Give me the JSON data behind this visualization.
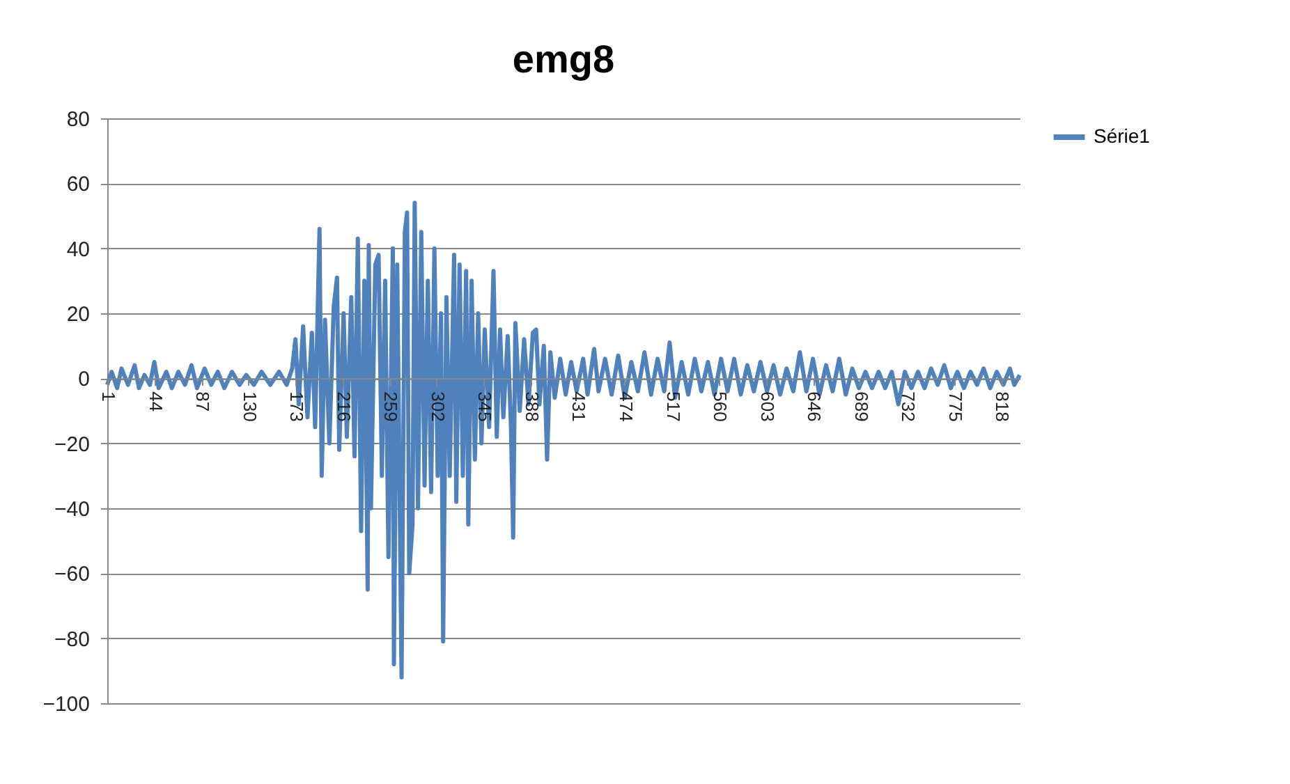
{
  "chart_data": {
    "type": "line",
    "title": "emg8",
    "x": [
      1,
      5,
      10,
      14,
      20,
      26,
      30,
      35,
      40,
      44,
      48,
      55,
      60,
      66,
      72,
      78,
      83,
      90,
      96,
      102,
      108,
      115,
      122,
      128,
      135,
      142,
      150,
      158,
      165,
      170,
      173,
      176,
      180,
      184,
      188,
      191,
      195,
      197,
      200,
      204,
      208,
      211,
      213,
      217,
      220,
      224,
      227,
      230,
      233,
      236,
      239,
      240,
      242,
      246,
      249,
      252,
      255,
      258,
      262,
      263,
      266,
      270,
      273,
      275,
      277,
      280,
      282,
      285,
      288,
      291,
      294,
      297,
      300,
      303,
      306,
      308,
      311,
      314,
      318,
      320,
      323,
      326,
      329,
      331,
      334,
      337,
      340,
      343,
      346,
      350,
      354,
      357,
      360,
      363,
      367,
      370,
      372,
      374,
      378,
      382,
      386,
      390,
      393,
      396,
      400,
      403,
      406,
      410,
      415,
      420,
      425,
      430,
      436,
      440,
      446,
      450,
      456,
      462,
      468,
      474,
      480,
      486,
      492,
      498,
      504,
      510,
      515,
      520,
      526,
      532,
      538,
      544,
      550,
      556,
      562,
      568,
      574,
      580,
      586,
      592,
      598,
      604,
      610,
      616,
      622,
      628,
      634,
      640,
      646,
      652,
      658,
      664,
      670,
      676,
      682,
      688,
      694,
      700,
      706,
      712,
      718,
      724,
      730,
      736,
      742,
      748,
      754,
      760,
      766,
      772,
      778,
      784,
      790,
      796,
      802,
      808,
      814,
      820,
      826,
      830,
      835
    ],
    "series": [
      {
        "name": "Série1",
        "color": "#4f81bd",
        "values": [
          -2,
          2,
          -3,
          3,
          -2,
          4,
          -3,
          1,
          -2,
          5,
          -3,
          2,
          -3,
          2,
          -2,
          4,
          -3,
          3,
          -2,
          2,
          -3,
          2,
          -2,
          1,
          -2,
          2,
          -2,
          2,
          -2,
          3,
          12,
          -8,
          16,
          -12,
          14,
          -15,
          46,
          -30,
          18,
          -20,
          22,
          31,
          -22,
          20,
          -18,
          25,
          -24,
          43,
          -47,
          30,
          -65,
          41,
          -40,
          35,
          38,
          -30,
          30,
          -55,
          40,
          -88,
          35,
          -92,
          45,
          51,
          -60,
          -45,
          54,
          -40,
          45,
          -33,
          30,
          -35,
          40,
          -30,
          20,
          -81,
          25,
          -30,
          38,
          -38,
          35,
          -30,
          33,
          -45,
          30,
          -25,
          20,
          -20,
          15,
          -15,
          33,
          -18,
          15,
          -12,
          13,
          -15,
          -49,
          17,
          -10,
          12,
          -8,
          14,
          15,
          -8,
          10,
          -25,
          8,
          -6,
          6,
          -5,
          5,
          -4,
          6,
          -5,
          9,
          -4,
          6,
          -5,
          7,
          -6,
          5,
          -4,
          8,
          -5,
          6,
          -4,
          11,
          -6,
          5,
          -5,
          6,
          -4,
          5,
          -5,
          6,
          -4,
          6,
          -5,
          4,
          -4,
          5,
          -4,
          4,
          -5,
          3,
          -4,
          8,
          -4,
          6,
          -5,
          4,
          -4,
          6,
          -5,
          3,
          -3,
          2,
          -3,
          2,
          -3,
          2,
          -8,
          2,
          -3,
          2,
          -3,
          3,
          -2,
          4,
          -3,
          2,
          -3,
          2,
          -2,
          3,
          -3,
          2,
          -2,
          3,
          -2,
          1
        ]
      }
    ],
    "xlim": [
      1,
      835
    ],
    "xticks": [
      1,
      44,
      87,
      130,
      173,
      216,
      259,
      302,
      345,
      388,
      431,
      474,
      517,
      560,
      603,
      646,
      689,
      732,
      775,
      818
    ],
    "ylim": [
      -100,
      80
    ],
    "yticks": [
      -100,
      -80,
      -60,
      -40,
      -20,
      0,
      20,
      40,
      60,
      80
    ],
    "grid": "y",
    "legend": "right"
  }
}
